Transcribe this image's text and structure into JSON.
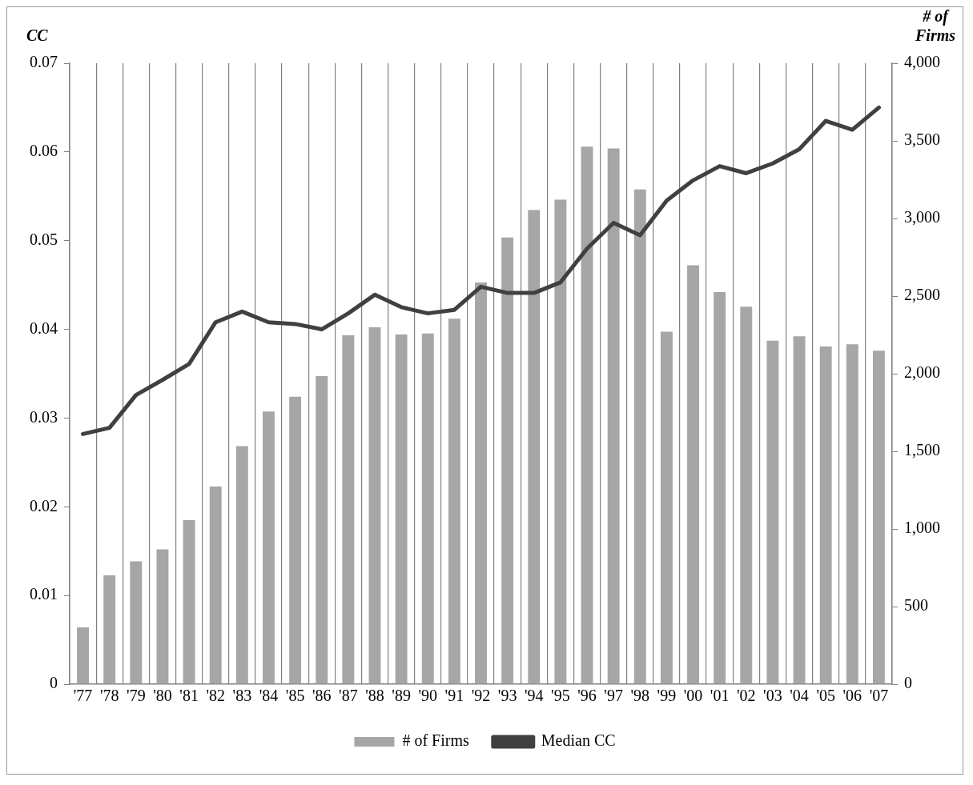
{
  "chart_data": {
    "type": "bar",
    "ylabel": "CC",
    "y2label": "# of Firms",
    "categories": [
      "'77",
      "'78",
      "'79",
      "'80",
      "'81",
      "'82",
      "'83",
      "'84",
      "'85",
      "'86",
      "'87",
      "'88",
      "'89",
      "'90",
      "'91",
      "'92",
      "'93",
      "'94",
      "'95",
      "'96",
      "'97",
      "'98",
      "'99",
      "'00",
      "'01",
      "'02",
      "'03",
      "'04",
      "'05",
      "'06",
      "'07"
    ],
    "series": [
      {
        "name": "# of Firms",
        "axis": "y2",
        "color": "#a6a6a6",
        "values": [
          366,
          701,
          791,
          869,
          1057,
          1273,
          1534,
          1756,
          1852,
          1984,
          2248,
          2299,
          2253,
          2259,
          2355,
          2587,
          2877,
          3054,
          3121,
          3462,
          3451,
          3187,
          2270,
          2699,
          2526,
          2432,
          2212,
          2241,
          2175,
          2189,
          2148
        ]
      },
      {
        "name": "Median CC",
        "type": "line",
        "color": "#404040",
        "values": [
          0.0282,
          0.0289,
          0.0326,
          0.0343,
          0.0361,
          0.0408,
          0.042,
          0.0408,
          0.0406,
          0.04,
          0.0418,
          0.0439,
          0.0425,
          0.0418,
          0.0422,
          0.0448,
          0.0441,
          0.0441,
          0.0453,
          0.0491,
          0.052,
          0.0506,
          0.0545,
          0.0568,
          0.0584,
          0.0576,
          0.0587,
          0.0603,
          0.0635,
          0.0625,
          0.065
        ]
      }
    ],
    "ylim": [
      0,
      0.07
    ],
    "yticks": [
      0,
      0.01,
      0.02,
      0.03,
      0.04,
      0.05,
      0.06,
      0.07
    ],
    "y2lim": [
      0,
      4000
    ],
    "y2ticks": [
      0,
      500,
      {
        "value": 1000,
        "label": "1,000"
      },
      {
        "value": 1500,
        "label": "1,500"
      },
      {
        "value": 2000,
        "label": "2,000"
      },
      {
        "value": 2500,
        "label": "2,500"
      },
      {
        "value": 3000,
        "label": "3,000"
      },
      {
        "value": 3500,
        "label": "3,500"
      },
      {
        "value": 4000,
        "label": "4,000"
      }
    ],
    "grid": "x",
    "legend": "bottom",
    "marker": "none",
    "line_style": "solid"
  }
}
